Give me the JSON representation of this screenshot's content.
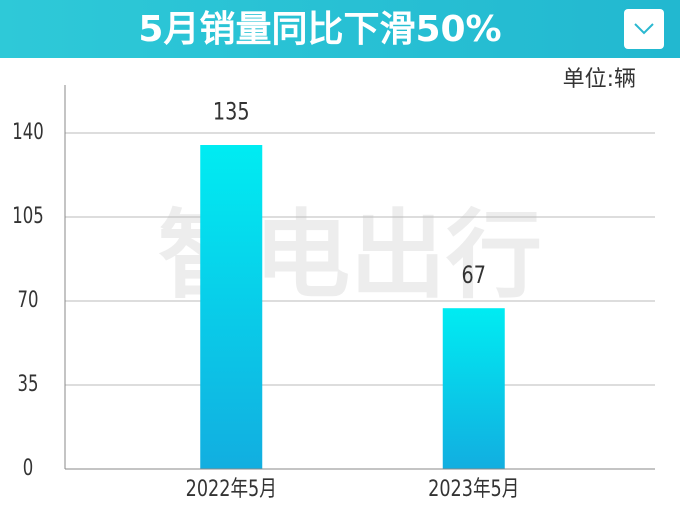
{
  "chart_data": {
    "type": "bar",
    "title": "5月销量同比下滑50%",
    "unit": "单位:辆",
    "watermark": "智电出行",
    "categories": [
      "2022年5月",
      "2023年5月"
    ],
    "values": [
      135,
      67
    ],
    "color": [
      "#00ecf2",
      "#12aee0"
    ],
    "ylim": [
      0,
      160
    ],
    "yticks": [
      0,
      35,
      70,
      105,
      140
    ],
    "grid": true
  }
}
